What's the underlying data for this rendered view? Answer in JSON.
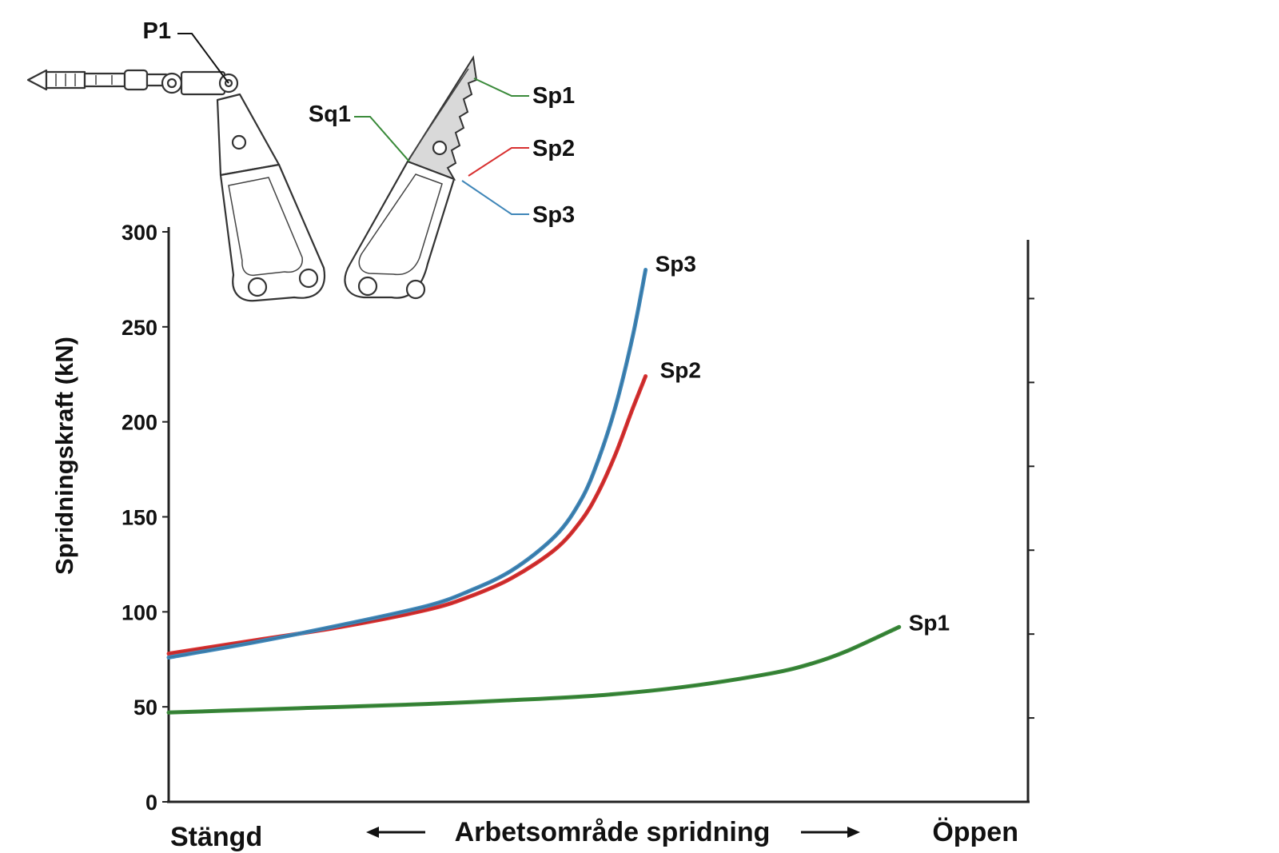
{
  "chart_data": {
    "type": "line",
    "xlabel": "Arbetsområde spridning",
    "x_left_label": "Stängd",
    "x_right_label": "Öppen",
    "ylabel": "Spridningskraft (kN)",
    "ylim": [
      0,
      300
    ],
    "yticks": [
      "0",
      "50",
      "100",
      "150",
      "200",
      "250",
      "300"
    ],
    "xlim": [
      0,
      1
    ],
    "right_axis_ticks": 6,
    "grid": false,
    "series": [
      {
        "name": "Sp1",
        "color": "#3a8a3a",
        "x": [
          0,
          0.1,
          0.2,
          0.3,
          0.4,
          0.5,
          0.6,
          0.7,
          0.75,
          0.79,
          0.85
        ],
        "y": [
          47,
          48.5,
          50,
          51.5,
          53.5,
          56,
          60.5,
          67.5,
          73,
          79.5,
          92
        ]
      },
      {
        "name": "Sp2",
        "color": "#d83030",
        "x": [
          0,
          0.1,
          0.2,
          0.3,
          0.35,
          0.4,
          0.45,
          0.48,
          0.5,
          0.52,
          0.54,
          0.555
        ],
        "y": [
          78,
          85,
          92,
          101,
          108,
          118,
          133,
          148,
          163,
          183,
          207,
          224
        ]
      },
      {
        "name": "Sp3",
        "color": "#3f86b8",
        "x": [
          0,
          0.1,
          0.2,
          0.3,
          0.35,
          0.4,
          0.45,
          0.48,
          0.5,
          0.52,
          0.54,
          0.555
        ],
        "y": [
          76,
          84,
          93,
          103,
          111,
          122,
          140,
          159,
          180,
          208,
          245,
          280
        ]
      }
    ]
  },
  "diagram": {
    "labels": {
      "p1": "P1",
      "sq1": "Sq1",
      "sp1": "Sp1",
      "sp2": "Sp2",
      "sp3": "Sp3"
    },
    "leader_colors": {
      "p1": "#111111",
      "sq1": "#3a8a3a",
      "sp1": "#3a8a3a",
      "sp2": "#d83030",
      "sp3": "#3f86b8"
    }
  }
}
